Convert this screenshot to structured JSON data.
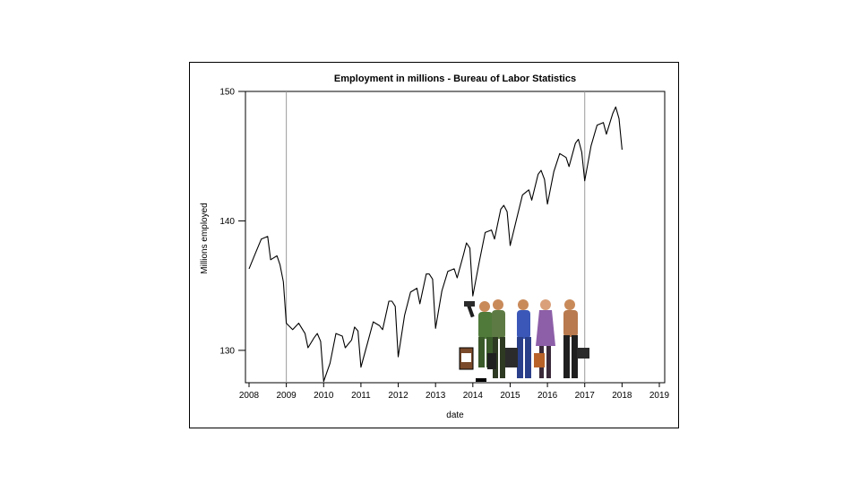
{
  "chart_data": {
    "type": "line",
    "title": "Employment in millions - Bureau of Labor Statistics",
    "xlabel": "date",
    "ylabel": "Millions employed",
    "x_ticks": [
      "2008",
      "2009",
      "2010",
      "2011",
      "2012",
      "2013",
      "2014",
      "2015",
      "2016",
      "2017",
      "2018",
      "2019"
    ],
    "y_ticks": [
      130,
      140,
      150
    ],
    "xlim": [
      2008,
      2019
    ],
    "ylim": [
      127.5,
      150
    ],
    "reference_lines_x": [
      2009,
      2017
    ],
    "grid": false,
    "legend": "none",
    "series": [
      {
        "color": "#000000",
        "x": [
          2008.0,
          2008.17,
          2008.33,
          2008.5,
          2008.58,
          2008.75,
          2008.83,
          2008.92,
          2009.0,
          2009.17,
          2009.33,
          2009.5,
          2009.58,
          2009.75,
          2009.83,
          2009.92,
          2010.0,
          2010.17,
          2010.33,
          2010.5,
          2010.58,
          2010.75,
          2010.83,
          2010.92,
          2011.0,
          2011.17,
          2011.33,
          2011.5,
          2011.58,
          2011.75,
          2011.83,
          2011.92,
          2012.0,
          2012.17,
          2012.33,
          2012.5,
          2012.58,
          2012.75,
          2012.83,
          2012.92,
          2013.0,
          2013.17,
          2013.33,
          2013.5,
          2013.58,
          2013.75,
          2013.83,
          2013.92,
          2014.0,
          2014.17,
          2014.33,
          2014.5,
          2014.58,
          2014.75,
          2014.83,
          2014.92,
          2015.0,
          2015.17,
          2015.33,
          2015.5,
          2015.58,
          2015.75,
          2015.83,
          2015.92,
          2016.0,
          2016.17,
          2016.33,
          2016.5,
          2016.58,
          2016.75,
          2016.83,
          2016.92,
          2017.0,
          2017.17,
          2017.33,
          2017.5,
          2017.58,
          2017.75,
          2017.83,
          2017.92,
          2018.0
        ],
        "values": [
          136.3,
          137.5,
          138.6,
          138.8,
          137.0,
          137.3,
          136.6,
          135.3,
          132.1,
          131.6,
          132.1,
          131.3,
          130.2,
          131.0,
          131.3,
          130.7,
          127.6,
          129.0,
          131.3,
          131.1,
          130.2,
          130.8,
          131.8,
          131.5,
          128.7,
          130.5,
          132.2,
          131.9,
          131.6,
          133.8,
          133.8,
          133.4,
          129.5,
          132.7,
          134.5,
          134.8,
          133.6,
          135.9,
          135.9,
          135.5,
          131.7,
          134.6,
          136.1,
          136.3,
          135.6,
          137.4,
          138.3,
          137.9,
          134.2,
          136.8,
          139.1,
          139.3,
          138.6,
          140.9,
          141.2,
          140.7,
          138.1,
          140.1,
          142.0,
          142.4,
          141.6,
          143.6,
          143.9,
          143.2,
          141.3,
          143.8,
          145.2,
          144.9,
          144.2,
          146.0,
          146.3,
          145.3,
          143.1,
          145.8,
          147.4,
          147.6,
          146.7,
          148.3,
          148.8,
          147.9,
          145.5
        ]
      }
    ]
  },
  "illustration": {
    "icon": "workers-clipart-icon",
    "colors": [
      "#4f7a3a",
      "#3b58b8",
      "#8d5fa8",
      "#b87a4e",
      "#1f1f1f"
    ]
  }
}
